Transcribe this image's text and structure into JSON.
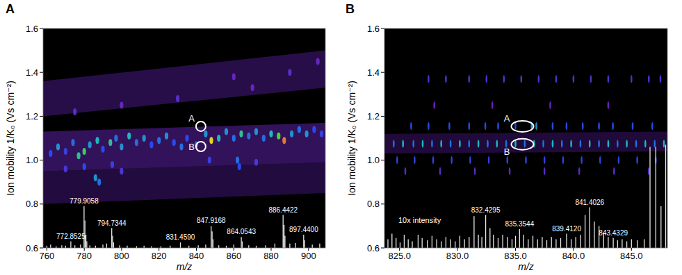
{
  "chart_data": [
    {
      "type": "heatmap",
      "title": "A",
      "x_label": "m/z",
      "y_label": "Ion mobility 1/K₀ (Vs cm⁻²)",
      "xlim": [
        758,
        909
      ],
      "ylim": [
        0.6,
        1.6
      ],
      "xticks": [
        760,
        780,
        800,
        820,
        840,
        860,
        880,
        900
      ],
      "yticks": [
        0.6,
        0.8,
        {
          "value": 1,
          "label": "1.0"
        },
        1.2,
        1.4,
        1.6
      ],
      "zlim": [
        0,
        1
      ],
      "bands": [
        {
          "x": [
            758,
            909
          ],
          "ylo": [
            0.8,
            0.85
          ],
          "yhi": [
            0.95,
            0.99
          ],
          "value": 0.15
        },
        {
          "x": [
            758,
            909
          ],
          "ylo": [
            0.95,
            0.99
          ],
          "yhi": [
            1.13,
            1.17
          ],
          "value": 0.3
        },
        {
          "x": [
            758,
            909
          ],
          "ylo": [
            1.2,
            1.33
          ],
          "yhi": [
            1.36,
            1.5
          ],
          "value": 0.2
        }
      ],
      "spots": {
        "x": [
          762,
          766,
          770,
          774,
          777,
          780,
          783,
          787,
          790,
          794,
          797,
          800,
          804,
          808,
          812,
          816,
          820,
          824,
          828,
          832,
          835,
          840,
          845,
          848,
          852,
          856,
          860,
          864,
          868,
          872,
          876,
          880,
          884,
          887,
          891,
          895,
          899,
          903,
          907,
          770,
          780,
          786,
          788,
          795,
          800,
          847,
          862,
          863,
          872,
          775,
          800,
          830,
          870,
          890,
          860,
          905
        ],
        "y": [
          1.03,
          1.06,
          1.04,
          1.08,
          1.02,
          1.04,
          1.07,
          1.09,
          1.05,
          1.08,
          1.1,
          1.06,
          1.11,
          1.08,
          1.1,
          1.07,
          1.09,
          1.11,
          1.08,
          1.06,
          1.1,
          1.07,
          1.12,
          1.09,
          1.1,
          1.13,
          1.1,
          1.12,
          1.11,
          1.13,
          1.1,
          1.12,
          1.11,
          1.09,
          1.12,
          1.14,
          1.12,
          1.14,
          1.12,
          0.96,
          0.97,
          0.92,
          0.9,
          0.98,
          0.95,
          1.0,
          1.0,
          0.97,
          0.99,
          1.22,
          1.25,
          1.28,
          1.33,
          1.4,
          1.38,
          1.45
        ],
        "values": [
          0.5,
          0.6,
          0.45,
          0.55,
          0.7,
          0.75,
          0.6,
          0.65,
          0.5,
          0.7,
          0.55,
          0.6,
          0.65,
          0.55,
          0.6,
          0.5,
          0.55,
          0.6,
          0.5,
          0.55,
          0.5,
          0.55,
          0.6,
          0.9,
          0.65,
          0.6,
          0.55,
          0.7,
          0.55,
          0.6,
          0.55,
          0.65,
          0.8,
          0.95,
          0.6,
          0.55,
          0.6,
          0.5,
          0.45,
          0.4,
          0.5,
          0.6,
          0.55,
          0.45,
          0.4,
          0.45,
          0.55,
          0.5,
          0.4,
          0.35,
          0.3,
          0.35,
          0.3,
          0.35,
          0.3,
          0.3
        ]
      },
      "spectrum": {
        "color": "#e6e6e6",
        "x": [
          760,
          762,
          765,
          768,
          770,
          772.8525,
          775,
          778,
          779.9,
          780.4,
          780.9,
          781.4,
          783,
          786,
          790,
          792,
          794.7,
          795.2,
          795.7,
          799,
          803,
          808,
          812,
          816,
          821,
          826,
          831.46,
          836,
          841,
          845,
          847.9,
          848.4,
          848.9,
          852,
          856,
          860,
          864.05,
          864.5,
          868,
          872,
          877,
          882,
          886.4,
          886.9,
          887.4,
          890,
          893,
          897.4,
          897.9,
          902,
          906
        ],
        "values": [
          0.61,
          0.615,
          0.608,
          0.612,
          0.61,
          0.63,
          0.612,
          0.615,
          0.79,
          0.725,
          0.66,
          0.63,
          0.612,
          0.61,
          0.615,
          0.62,
          0.69,
          0.655,
          0.625,
          0.612,
          0.61,
          0.608,
          0.61,
          0.608,
          0.608,
          0.61,
          0.625,
          0.61,
          0.612,
          0.615,
          0.7,
          0.675,
          0.64,
          0.612,
          0.61,
          0.615,
          0.65,
          0.63,
          0.612,
          0.61,
          0.612,
          0.62,
          0.75,
          0.705,
          0.655,
          0.62,
          0.622,
          0.66,
          0.635,
          0.615,
          0.62
        ]
      },
      "peak_labels": [
        {
          "x": 772.8525,
          "text": "772.8525"
        },
        {
          "x": 779.9058,
          "text": "779.9058"
        },
        {
          "x": 794.7344,
          "text": "794.7344"
        },
        {
          "x": 831.459,
          "text": "831.4590"
        },
        {
          "x": 847.9168,
          "text": "847.9168"
        },
        {
          "x": 864.0543,
          "text": "864.0543"
        },
        {
          "x": 886.4422,
          "text": "886.4422"
        },
        {
          "x": 897.44,
          "text": "897.4400"
        }
      ],
      "annotations": [
        {
          "text": "A",
          "x": 842.4,
          "y": 1.154,
          "marker": "circle"
        },
        {
          "text": "B",
          "x": 842.4,
          "y": 1.062,
          "marker": "circle"
        }
      ]
    },
    {
      "type": "heatmap",
      "title": "B",
      "x_label": "m/z",
      "y_label": "Ion mobility 1/K₀ (Vs cm⁻²)",
      "xlim": [
        823.7,
        848.1
      ],
      "ylim": [
        0.6,
        1.6
      ],
      "xticks": [
        {
          "value": 825,
          "label": "825.0"
        },
        {
          "value": 830,
          "label": "830.0"
        },
        {
          "value": 835,
          "label": "835.0"
        },
        {
          "value": 840,
          "label": "840.0"
        },
        {
          "value": 845,
          "label": "845.0"
        }
      ],
      "yticks": [
        0.6,
        0.8,
        {
          "value": 1,
          "label": "1.0"
        },
        1.2,
        1.4,
        1.6
      ],
      "zlim": [
        0,
        1
      ],
      "bands": [
        {
          "x": [
            823.7,
            848.1
          ],
          "ylo": [
            1.03,
            1.04
          ],
          "yhi": [
            1.12,
            1.13
          ],
          "value": 0.12
        }
      ],
      "spots": {
        "x": [
          827.5,
          829,
          831,
          832.5,
          834,
          835.5,
          837,
          838.5,
          840,
          841.5,
          843,
          845,
          846.5,
          847.5,
          828,
          833,
          838,
          843,
          826,
          827.5,
          829.3,
          831,
          832.4,
          833.5,
          835,
          836.4,
          836.8,
          838.2,
          839.4,
          840.8,
          842.2,
          843.4,
          845.1,
          846.8,
          824.5,
          825.3,
          826.2,
          827,
          827.8,
          828.6,
          829.4,
          830.2,
          831,
          831.8,
          832.6,
          833.4,
          834.2,
          835,
          835.8,
          836.6,
          837.4,
          838.2,
          839,
          839.8,
          840.6,
          841.4,
          842.2,
          843,
          843.8,
          844.6,
          845.4,
          846.2,
          847,
          847.8,
          824.8,
          826.3,
          827.9,
          829.5,
          831.1,
          832.7,
          834.3,
          835.9,
          837.5,
          839.1,
          840.7,
          842.3,
          843.9,
          845.5,
          847.1,
          825.5,
          828.5,
          831.5,
          834.5,
          837.5,
          840.5,
          843.5,
          846.5
        ],
        "y": [
          1.37,
          1.37,
          1.37,
          1.37,
          1.37,
          1.37,
          1.37,
          1.37,
          1.37,
          1.37,
          1.37,
          1.37,
          1.37,
          1.37,
          1.25,
          1.25,
          1.25,
          1.25,
          1.155,
          1.155,
          1.155,
          1.155,
          1.155,
          1.155,
          1.155,
          1.155,
          1.155,
          1.155,
          1.155,
          1.155,
          1.155,
          1.155,
          1.155,
          1.155,
          1.075,
          1.075,
          1.075,
          1.075,
          1.075,
          1.075,
          1.075,
          1.075,
          1.075,
          1.075,
          1.075,
          1.075,
          1.075,
          1.075,
          1.075,
          1.075,
          1.075,
          1.075,
          1.075,
          1.075,
          1.075,
          1.075,
          1.075,
          1.075,
          1.075,
          1.075,
          1.075,
          1.075,
          1.075,
          1.075,
          1.0,
          1.0,
          1.0,
          1.0,
          1.0,
          1.0,
          1.0,
          1.0,
          1.0,
          1.0,
          1.0,
          1.0,
          1.0,
          1.0,
          1.0,
          0.95,
          0.95,
          0.95,
          0.95,
          0.95,
          0.95,
          0.95,
          0.95
        ],
        "values": [
          0.4,
          0.4,
          0.4,
          0.4,
          0.4,
          0.4,
          0.4,
          0.4,
          0.4,
          0.4,
          0.4,
          0.4,
          0.4,
          0.4,
          0.3,
          0.3,
          0.3,
          0.3,
          0.5,
          0.5,
          0.5,
          0.5,
          0.5,
          0.5,
          0.5,
          0.6,
          0.6,
          0.5,
          0.5,
          0.5,
          0.5,
          0.5,
          0.5,
          0.5,
          0.55,
          0.65,
          0.55,
          0.65,
          0.55,
          0.65,
          0.55,
          0.65,
          0.55,
          0.65,
          0.55,
          0.65,
          0.55,
          0.65,
          0.55,
          0.65,
          0.55,
          0.65,
          0.55,
          0.65,
          0.55,
          0.65,
          0.55,
          0.65,
          0.55,
          0.65,
          0.55,
          0.65,
          0.55,
          0.65,
          0.45,
          0.45,
          0.45,
          0.45,
          0.45,
          0.45,
          0.45,
          0.45,
          0.45,
          0.45,
          0.45,
          0.45,
          0.45,
          0.45,
          0.45,
          0.35,
          0.35,
          0.35,
          0.35,
          0.35,
          0.35,
          0.35,
          0.35
        ]
      },
      "spectrum": {
        "color": "#e6e6e6",
        "x": [
          824.0,
          824.35,
          824.7,
          825.05,
          825.4,
          825.75,
          826.1,
          826.6,
          826.95,
          827.4,
          827.8,
          828.2,
          828.6,
          829.0,
          829.4,
          829.8,
          830.2,
          830.6,
          831.0,
          831.43,
          831.8,
          832.1,
          832.43,
          832.8,
          833.1,
          833.5,
          833.9,
          834.3,
          834.7,
          835.0,
          835.35,
          835.7,
          836.1,
          836.5,
          836.9,
          837.3,
          837.7,
          838.1,
          838.5,
          838.9,
          839.41,
          839.8,
          840.2,
          840.6,
          841.0,
          841.4,
          841.8,
          842.2,
          842.6,
          843.0,
          843.43,
          843.8,
          844.2,
          844.6,
          845.0,
          845.5,
          846.1,
          846.6,
          847.1,
          847.55,
          847.95
        ],
        "values": [
          0.64,
          0.665,
          0.645,
          0.625,
          0.66,
          0.64,
          0.63,
          0.66,
          0.645,
          0.635,
          0.655,
          0.64,
          0.63,
          0.65,
          0.64,
          0.63,
          0.655,
          0.64,
          0.65,
          0.745,
          0.66,
          0.65,
          0.75,
          0.69,
          0.66,
          0.645,
          0.66,
          0.65,
          0.64,
          0.655,
          0.685,
          0.66,
          0.64,
          0.655,
          0.64,
          0.65,
          0.635,
          0.65,
          0.64,
          0.645,
          0.665,
          0.64,
          0.65,
          0.66,
          0.75,
          0.785,
          0.72,
          0.7,
          0.67,
          0.65,
          0.645,
          0.635,
          0.64,
          0.63,
          0.64,
          0.635,
          0.64,
          1.06,
          1.06,
          0.79,
          1.07
        ]
      },
      "peak_labels": [
        {
          "x": 832.4295,
          "text": "832.4295"
        },
        {
          "x": 835.3544,
          "text": "835.3544"
        },
        {
          "x": 839.412,
          "text": "839.4120"
        },
        {
          "x": 841.4026,
          "text": "841.4026"
        },
        {
          "x": 843.4329,
          "text": "843.4329"
        }
      ],
      "annotations": [
        {
          "text": "A",
          "x": 835.6,
          "y": 1.154,
          "marker": "ellipse"
        },
        {
          "text": "B",
          "x": 835.6,
          "y": 1.072,
          "marker": "ellipse"
        },
        {
          "text": "10x intensity",
          "x": 824.9,
          "y": 0.715
        }
      ]
    }
  ]
}
